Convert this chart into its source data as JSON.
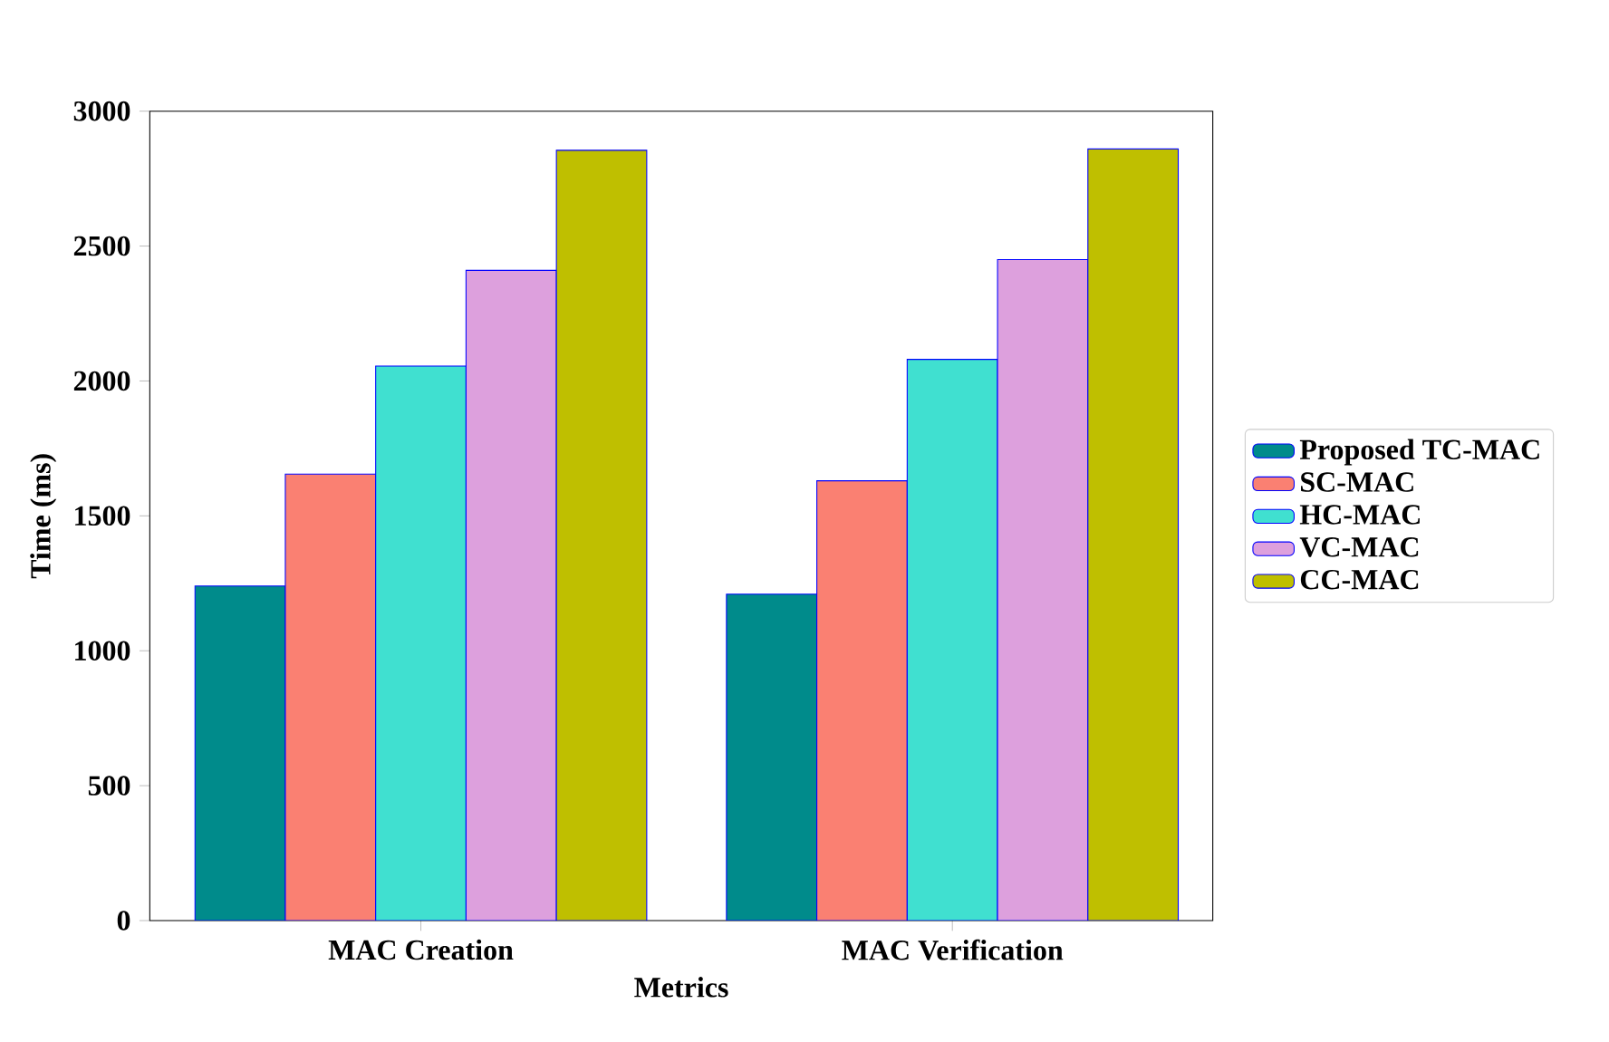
{
  "chart_data": {
    "type": "bar",
    "xlabel": "Metrics",
    "ylabel": "Time (ms)",
    "categories": [
      "MAC Creation",
      "MAC Verification"
    ],
    "series": [
      {
        "name": "Proposed TC-MAC",
        "color": "#008b8b",
        "values": [
          1240,
          1210
        ]
      },
      {
        "name": "SC-MAC",
        "color": "#fa8072",
        "values": [
          1655,
          1630
        ]
      },
      {
        "name": "HC-MAC",
        "color": "#40e0d0",
        "values": [
          2055,
          2080
        ]
      },
      {
        "name": "VC-MAC",
        "color": "#dda0dd",
        "values": [
          2410,
          2450
        ]
      },
      {
        "name": "CC-MAC",
        "color": "#bfbf00",
        "values": [
          2855,
          2860
        ]
      }
    ],
    "ylim": [
      0,
      3000
    ],
    "yticks": [
      0,
      500,
      1000,
      1500,
      2000,
      2500,
      3000
    ],
    "grid": false,
    "legend": "right"
  }
}
